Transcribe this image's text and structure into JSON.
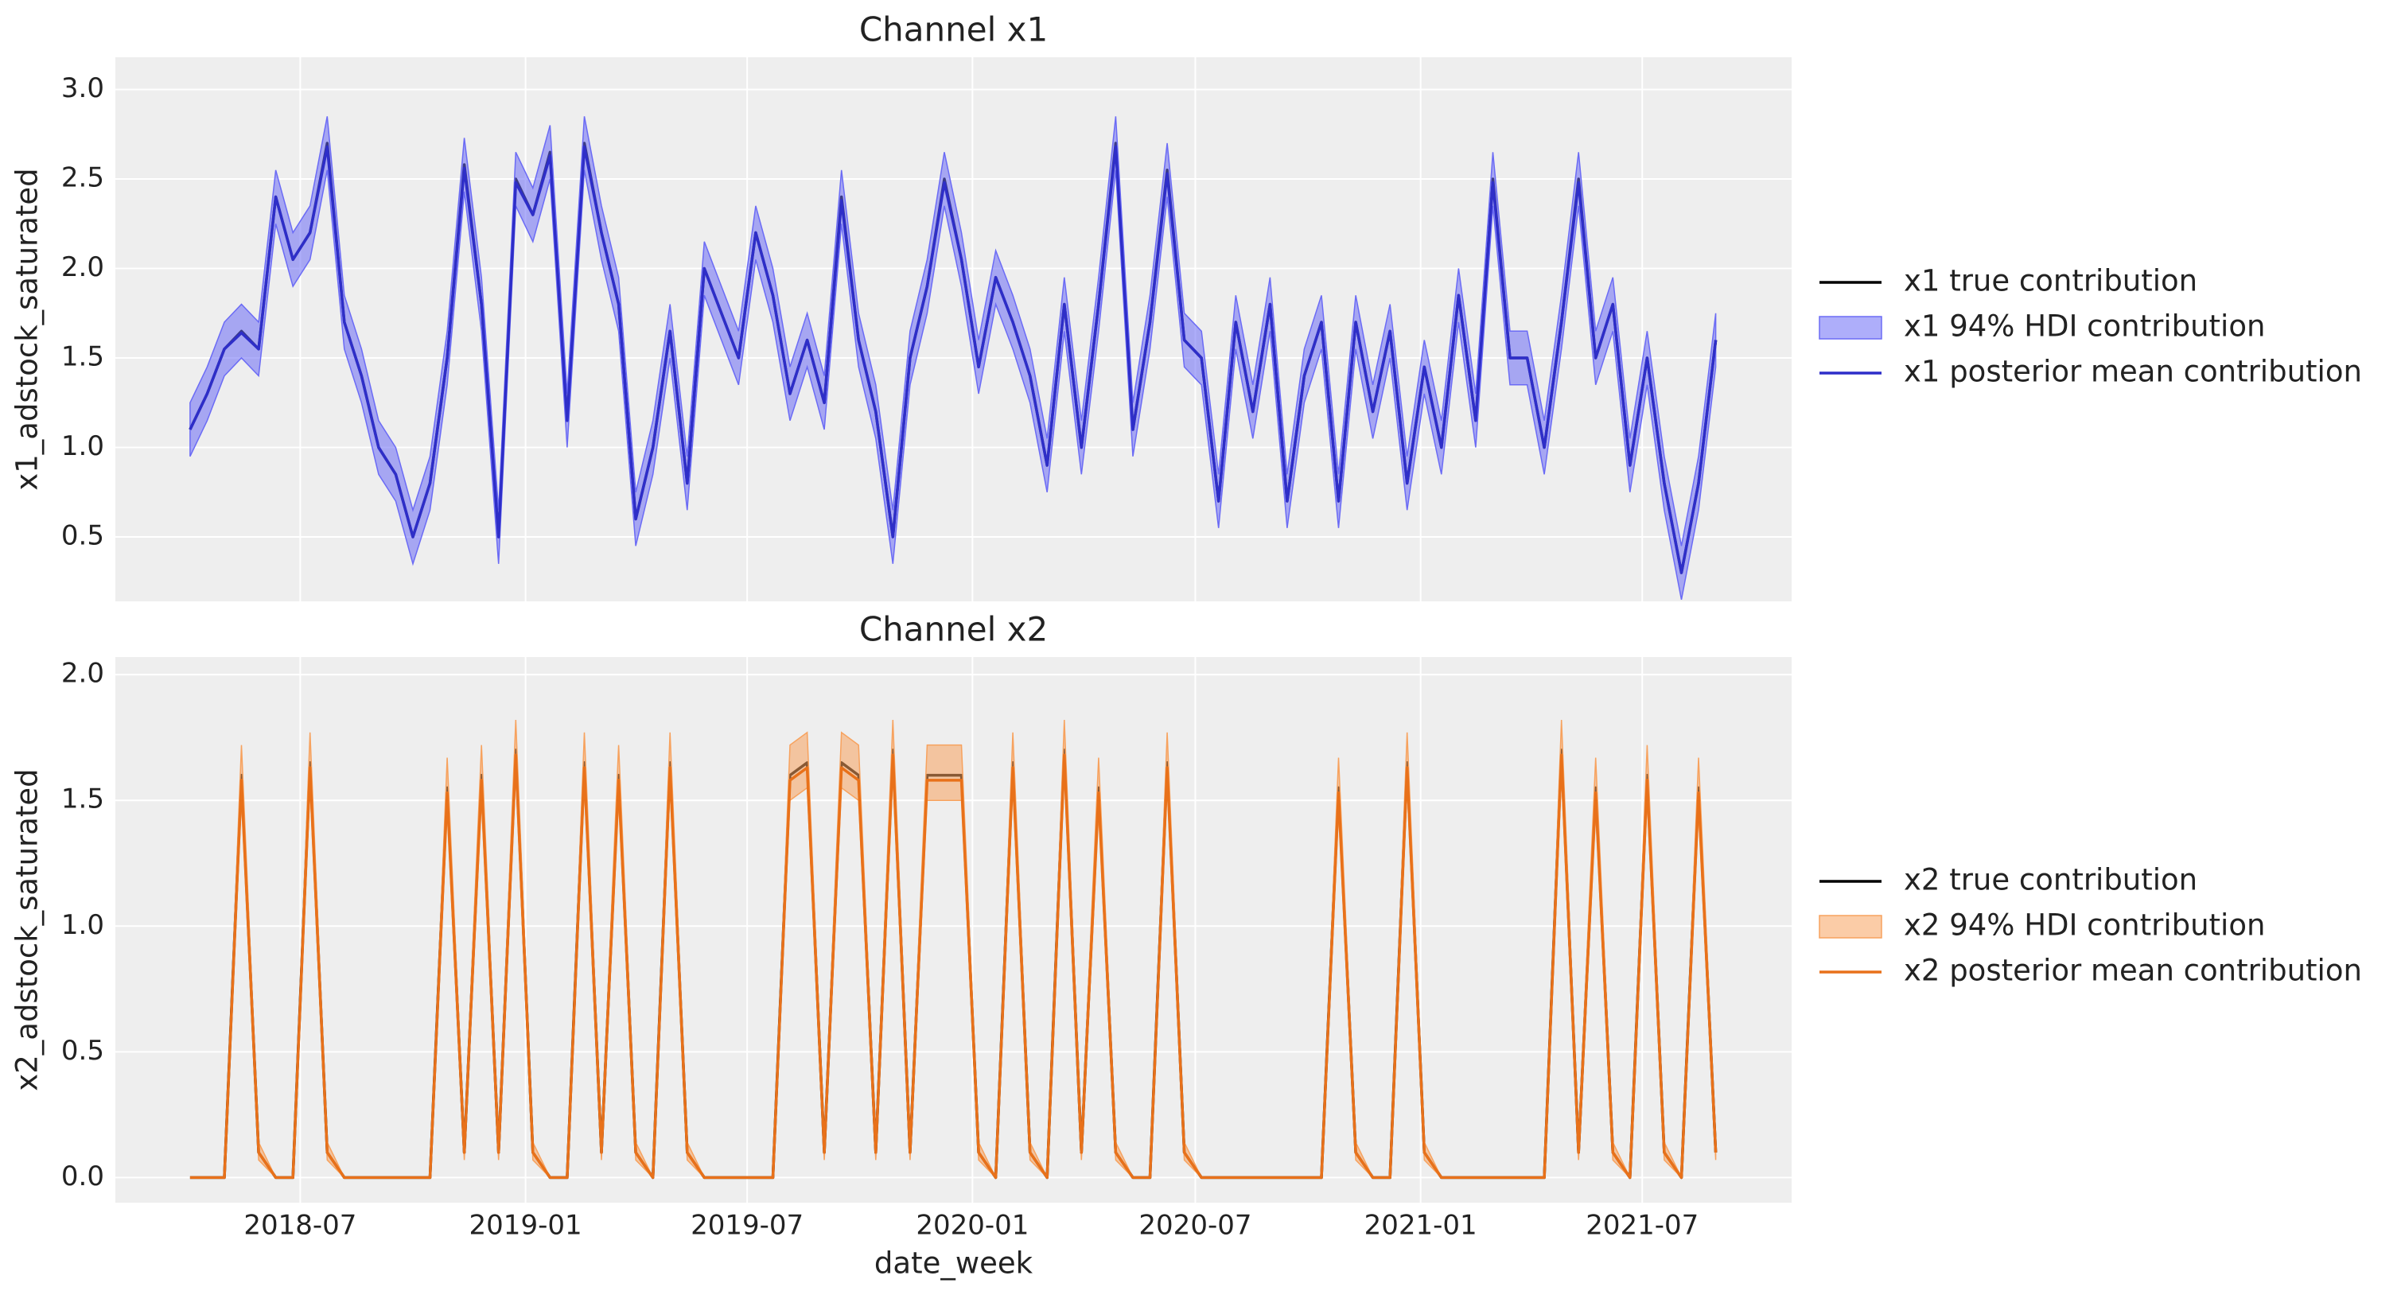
{
  "chart_data": [
    {
      "type": "line",
      "title": "Channel x1",
      "ylabel": "x1_adstock_saturated",
      "grid": true,
      "legend": "right",
      "xtick_labels": false,
      "x": [
        "2018-04-02",
        "2018-04-16",
        "2018-04-30",
        "2018-05-14",
        "2018-05-28",
        "2018-06-11",
        "2018-06-25",
        "2018-07-09",
        "2018-07-23",
        "2018-08-06",
        "2018-08-20",
        "2018-09-03",
        "2018-09-17",
        "2018-10-01",
        "2018-10-15",
        "2018-10-29",
        "2018-11-12",
        "2018-11-26",
        "2018-12-10",
        "2018-12-24",
        "2019-01-07",
        "2019-01-21",
        "2019-02-04",
        "2019-02-18",
        "2019-03-04",
        "2019-03-18",
        "2019-04-01",
        "2019-04-15",
        "2019-04-29",
        "2019-05-13",
        "2019-05-27",
        "2019-06-10",
        "2019-06-24",
        "2019-07-08",
        "2019-07-22",
        "2019-08-05",
        "2019-08-19",
        "2019-09-02",
        "2019-09-16",
        "2019-09-30",
        "2019-10-14",
        "2019-10-28",
        "2019-11-11",
        "2019-11-25",
        "2019-12-09",
        "2019-12-23",
        "2020-01-06",
        "2020-01-20",
        "2020-02-03",
        "2020-02-17",
        "2020-03-02",
        "2020-03-16",
        "2020-03-30",
        "2020-04-13",
        "2020-04-27",
        "2020-05-11",
        "2020-05-25",
        "2020-06-08",
        "2020-06-22",
        "2020-07-06",
        "2020-07-20",
        "2020-08-03",
        "2020-08-17",
        "2020-08-31",
        "2020-09-14",
        "2020-09-28",
        "2020-10-12",
        "2020-10-26",
        "2020-11-09",
        "2020-11-23",
        "2020-12-07",
        "2020-12-21",
        "2021-01-04",
        "2021-01-18",
        "2021-02-01",
        "2021-02-15",
        "2021-03-01",
        "2021-03-15",
        "2021-03-29",
        "2021-04-12",
        "2021-04-26",
        "2021-05-10",
        "2021-05-24",
        "2021-06-07",
        "2021-06-21",
        "2021-07-05",
        "2021-07-19",
        "2021-08-02",
        "2021-08-16",
        "2021-08-30"
      ],
      "xlim": [
        "2018-01-31",
        "2021-10-31"
      ],
      "xticks": [
        "2018-07",
        "2019-01",
        "2019-07",
        "2020-01",
        "2020-07",
        "2021-01",
        "2021-07"
      ],
      "ylim": [
        0.14,
        3.18
      ],
      "yticks": [
        0.5,
        {
          "value": 1,
          "label": "1.0"
        },
        1.5,
        {
          "value": 2,
          "label": "2.0"
        },
        2.5,
        {
          "value": 3,
          "label": "3.0"
        }
      ],
      "series": [
        {
          "name": "x1 true contribution",
          "color": "#000000",
          "values": [
            1.1,
            1.3,
            1.55,
            1.65,
            1.55,
            2.4,
            2.05,
            2.2,
            2.7,
            1.7,
            1.4,
            1.0,
            0.85,
            0.5,
            0.8,
            1.5,
            2.58,
            1.8,
            0.5,
            2.5,
            2.3,
            2.65,
            1.15,
            2.7,
            2.2,
            1.8,
            0.6,
            1.0,
            1.65,
            0.8,
            2.0,
            1.75,
            1.5,
            2.2,
            1.85,
            1.3,
            1.6,
            1.25,
            2.4,
            1.6,
            1.2,
            0.5,
            1.5,
            1.9,
            2.5,
            2.05,
            1.45,
            1.95,
            1.7,
            1.4,
            0.9,
            1.8,
            1.0,
            1.8,
            2.7,
            1.1,
            1.7,
            2.55,
            1.6,
            1.5,
            0.7,
            1.7,
            1.2,
            1.8,
            0.7,
            1.4,
            1.7,
            0.7,
            1.7,
            1.2,
            1.65,
            0.8,
            1.45,
            1.0,
            1.85,
            1.15,
            2.5,
            1.5,
            1.5,
            1.0,
            1.7,
            2.5,
            1.5,
            1.8,
            0.9,
            1.5,
            0.8,
            0.3,
            0.8,
            1.6
          ]
        },
        {
          "name": "x1 94% HDI contribution",
          "color": "#6b6bf5",
          "lower": [
            0.95,
            1.15,
            1.4,
            1.5,
            1.4,
            2.25,
            1.9,
            2.05,
            2.55,
            1.55,
            1.25,
            0.85,
            0.7,
            0.35,
            0.65,
            1.35,
            2.43,
            1.65,
            0.35,
            2.35,
            2.15,
            2.5,
            1.0,
            2.55,
            2.05,
            1.65,
            0.45,
            0.85,
            1.5,
            0.65,
            1.85,
            1.6,
            1.35,
            2.05,
            1.7,
            1.15,
            1.45,
            1.1,
            2.25,
            1.45,
            1.05,
            0.35,
            1.35,
            1.75,
            2.35,
            1.9,
            1.3,
            1.8,
            1.55,
            1.25,
            0.75,
            1.65,
            0.85,
            1.65,
            2.55,
            0.95,
            1.55,
            2.4,
            1.45,
            1.35,
            0.55,
            1.55,
            1.05,
            1.65,
            0.55,
            1.25,
            1.55,
            0.55,
            1.55,
            1.05,
            1.5,
            0.65,
            1.3,
            0.85,
            1.7,
            1.0,
            2.35,
            1.35,
            1.35,
            0.85,
            1.55,
            2.35,
            1.35,
            1.65,
            0.75,
            1.35,
            0.65,
            0.15,
            0.65,
            1.45
          ],
          "upper": [
            1.25,
            1.45,
            1.7,
            1.8,
            1.7,
            2.55,
            2.2,
            2.35,
            2.85,
            1.85,
            1.55,
            1.15,
            1.0,
            0.65,
            0.95,
            1.65,
            2.73,
            1.95,
            0.65,
            2.65,
            2.45,
            2.8,
            1.3,
            2.85,
            2.35,
            1.95,
            0.75,
            1.15,
            1.8,
            0.95,
            2.15,
            1.9,
            1.65,
            2.35,
            2.0,
            1.45,
            1.75,
            1.4,
            2.55,
            1.75,
            1.35,
            0.65,
            1.65,
            2.05,
            2.65,
            2.2,
            1.6,
            2.1,
            1.85,
            1.55,
            1.05,
            1.95,
            1.15,
            1.95,
            2.85,
            1.25,
            1.85,
            2.7,
            1.75,
            1.65,
            0.85,
            1.85,
            1.35,
            1.95,
            0.85,
            1.55,
            1.85,
            0.85,
            1.85,
            1.35,
            1.8,
            0.95,
            1.6,
            1.15,
            2.0,
            1.3,
            2.65,
            1.65,
            1.65,
            1.15,
            1.85,
            2.65,
            1.65,
            1.95,
            1.05,
            1.65,
            0.95,
            0.45,
            0.95,
            1.75
          ]
        },
        {
          "name": "x1 posterior mean contribution",
          "color": "#2e2ec8",
          "values": [
            1.1,
            1.3,
            1.55,
            1.64,
            1.55,
            2.4,
            2.05,
            2.2,
            2.68,
            1.7,
            1.4,
            1.0,
            0.85,
            0.5,
            0.8,
            1.5,
            2.56,
            1.8,
            0.5,
            2.48,
            2.3,
            2.63,
            1.15,
            2.68,
            2.2,
            1.8,
            0.6,
            1.0,
            1.65,
            0.8,
            2.0,
            1.75,
            1.5,
            2.2,
            1.85,
            1.3,
            1.6,
            1.25,
            2.38,
            1.6,
            1.2,
            0.5,
            1.5,
            1.9,
            2.48,
            2.05,
            1.45,
            1.95,
            1.7,
            1.4,
            0.9,
            1.8,
            1.0,
            1.8,
            2.68,
            1.1,
            1.7,
            2.53,
            1.6,
            1.5,
            0.7,
            1.7,
            1.2,
            1.8,
            0.7,
            1.4,
            1.7,
            0.7,
            1.7,
            1.2,
            1.65,
            0.8,
            1.45,
            1.0,
            1.85,
            1.15,
            2.48,
            1.5,
            1.5,
            1.0,
            1.7,
            2.48,
            1.5,
            1.8,
            0.9,
            1.5,
            0.8,
            0.3,
            0.8,
            1.6
          ]
        }
      ]
    },
    {
      "type": "line",
      "title": "Channel x2",
      "ylabel": "x2_adstock_saturated",
      "xlabel": "date_week",
      "grid": true,
      "legend": "right",
      "xtick_labels": true,
      "x": [
        "2018-04-02",
        "2018-04-16",
        "2018-04-30",
        "2018-05-14",
        "2018-05-28",
        "2018-06-11",
        "2018-06-25",
        "2018-07-09",
        "2018-07-23",
        "2018-08-06",
        "2018-08-20",
        "2018-09-03",
        "2018-09-17",
        "2018-10-01",
        "2018-10-15",
        "2018-10-29",
        "2018-11-12",
        "2018-11-26",
        "2018-12-10",
        "2018-12-24",
        "2019-01-07",
        "2019-01-21",
        "2019-02-04",
        "2019-02-18",
        "2019-03-04",
        "2019-03-18",
        "2019-04-01",
        "2019-04-15",
        "2019-04-29",
        "2019-05-13",
        "2019-05-27",
        "2019-06-10",
        "2019-06-24",
        "2019-07-08",
        "2019-07-22",
        "2019-08-05",
        "2019-08-19",
        "2019-09-02",
        "2019-09-16",
        "2019-09-30",
        "2019-10-14",
        "2019-10-28",
        "2019-11-11",
        "2019-11-25",
        "2019-12-09",
        "2019-12-23",
        "2020-01-06",
        "2020-01-20",
        "2020-02-03",
        "2020-02-17",
        "2020-03-02",
        "2020-03-16",
        "2020-03-30",
        "2020-04-13",
        "2020-04-27",
        "2020-05-11",
        "2020-05-25",
        "2020-06-08",
        "2020-06-22",
        "2020-07-06",
        "2020-07-20",
        "2020-08-03",
        "2020-08-17",
        "2020-08-31",
        "2020-09-14",
        "2020-09-28",
        "2020-10-12",
        "2020-10-26",
        "2020-11-09",
        "2020-11-23",
        "2020-12-07",
        "2020-12-21",
        "2021-01-04",
        "2021-01-18",
        "2021-02-01",
        "2021-02-15",
        "2021-03-01",
        "2021-03-15",
        "2021-03-29",
        "2021-04-12",
        "2021-04-26",
        "2021-05-10",
        "2021-05-24",
        "2021-06-07",
        "2021-06-21",
        "2021-07-05",
        "2021-07-19",
        "2021-08-02",
        "2021-08-16",
        "2021-08-30"
      ],
      "xlim": [
        "2018-01-31",
        "2021-10-31"
      ],
      "xticks": [
        "2018-07",
        "2019-01",
        "2019-07",
        "2020-01",
        "2020-07",
        "2021-01",
        "2021-07"
      ],
      "ylim": [
        -0.1,
        2.07
      ],
      "yticks": [
        {
          "value": 0,
          "label": "0.0"
        },
        0.5,
        {
          "value": 1,
          "label": "1.0"
        },
        1.5,
        {
          "value": 2,
          "label": "2.0"
        }
      ],
      "series": [
        {
          "name": "x2 true contribution",
          "color": "#000000",
          "values": [
            0,
            0,
            0,
            1.6,
            0.1,
            0,
            0,
            1.65,
            0.1,
            0,
            0,
            0,
            0,
            0,
            0,
            1.55,
            0.1,
            1.6,
            0.1,
            1.7,
            0.1,
            0,
            0,
            1.65,
            0.1,
            1.6,
            0.1,
            0,
            1.65,
            0.1,
            0,
            0,
            0,
            0,
            0,
            1.6,
            1.65,
            0.1,
            1.65,
            1.6,
            0.1,
            1.7,
            0.1,
            1.6,
            1.6,
            1.6,
            0.1,
            0,
            1.65,
            0.1,
            0,
            1.7,
            0.1,
            1.55,
            0.1,
            0,
            0,
            1.65,
            0.1,
            0,
            0,
            0,
            0,
            0,
            0,
            0,
            0,
            1.55,
            0.1,
            0,
            0,
            1.65,
            0.1,
            0,
            0,
            0,
            0,
            0,
            0,
            0,
            1.7,
            0.1,
            1.55,
            0.1,
            0,
            1.6,
            0.1,
            0,
            1.55,
            0.1
          ]
        },
        {
          "name": "x2 94% HDI contribution",
          "color": "#f7a25e",
          "lower": [
            0,
            0,
            0,
            1.5,
            0.07,
            0,
            0,
            1.55,
            0.07,
            0,
            0,
            0,
            0,
            0,
            0,
            1.45,
            0.07,
            1.5,
            0.07,
            1.6,
            0.07,
            0,
            0,
            1.55,
            0.07,
            1.5,
            0.07,
            0,
            1.55,
            0.07,
            0,
            0,
            0,
            0,
            0,
            1.5,
            1.55,
            0.07,
            1.55,
            1.5,
            0.07,
            1.6,
            0.07,
            1.5,
            1.5,
            1.5,
            0.07,
            0,
            1.55,
            0.07,
            0,
            1.6,
            0.07,
            1.45,
            0.07,
            0,
            0,
            1.55,
            0.07,
            0,
            0,
            0,
            0,
            0,
            0,
            0,
            0,
            1.45,
            0.07,
            0,
            0,
            1.55,
            0.07,
            0,
            0,
            0,
            0,
            0,
            0,
            0,
            1.6,
            0.07,
            1.45,
            0.07,
            0,
            1.5,
            0.07,
            0,
            1.45,
            0.07
          ],
          "upper": [
            0,
            0,
            0,
            1.72,
            0.14,
            0,
            0,
            1.77,
            0.14,
            0,
            0,
            0,
            0,
            0,
            0,
            1.67,
            0.14,
            1.72,
            0.14,
            1.82,
            0.14,
            0,
            0,
            1.77,
            0.14,
            1.72,
            0.14,
            0,
            1.77,
            0.14,
            0,
            0,
            0,
            0,
            0,
            1.72,
            1.77,
            0.14,
            1.77,
            1.72,
            0.14,
            1.82,
            0.14,
            1.72,
            1.72,
            1.72,
            0.14,
            0,
            1.77,
            0.14,
            0,
            1.82,
            0.14,
            1.67,
            0.14,
            0,
            0,
            1.77,
            0.14,
            0,
            0,
            0,
            0,
            0,
            0,
            0,
            0,
            1.67,
            0.14,
            0,
            0,
            1.77,
            0.14,
            0,
            0,
            0,
            0,
            0,
            0,
            0,
            1.82,
            0.14,
            1.67,
            0.14,
            0,
            1.72,
            0.14,
            0,
            1.67,
            0.14
          ]
        },
        {
          "name": "x2 posterior mean contribution",
          "color": "#e8711a",
          "values": [
            0,
            0,
            0,
            1.58,
            0.1,
            0,
            0,
            1.63,
            0.1,
            0,
            0,
            0,
            0,
            0,
            0,
            1.53,
            0.1,
            1.58,
            0.1,
            1.68,
            0.1,
            0,
            0,
            1.63,
            0.1,
            1.58,
            0.1,
            0,
            1.63,
            0.1,
            0,
            0,
            0,
            0,
            0,
            1.58,
            1.63,
            0.1,
            1.63,
            1.58,
            0.1,
            1.68,
            0.1,
            1.58,
            1.58,
            1.58,
            0.1,
            0,
            1.63,
            0.1,
            0,
            1.68,
            0.1,
            1.53,
            0.1,
            0,
            0,
            1.63,
            0.1,
            0,
            0,
            0,
            0,
            0,
            0,
            0,
            0,
            1.53,
            0.1,
            0,
            0,
            1.63,
            0.1,
            0,
            0,
            0,
            0,
            0,
            0,
            0,
            1.68,
            0.1,
            1.53,
            0.1,
            0,
            1.58,
            0.1,
            0,
            1.53,
            0.1
          ]
        }
      ]
    }
  ]
}
